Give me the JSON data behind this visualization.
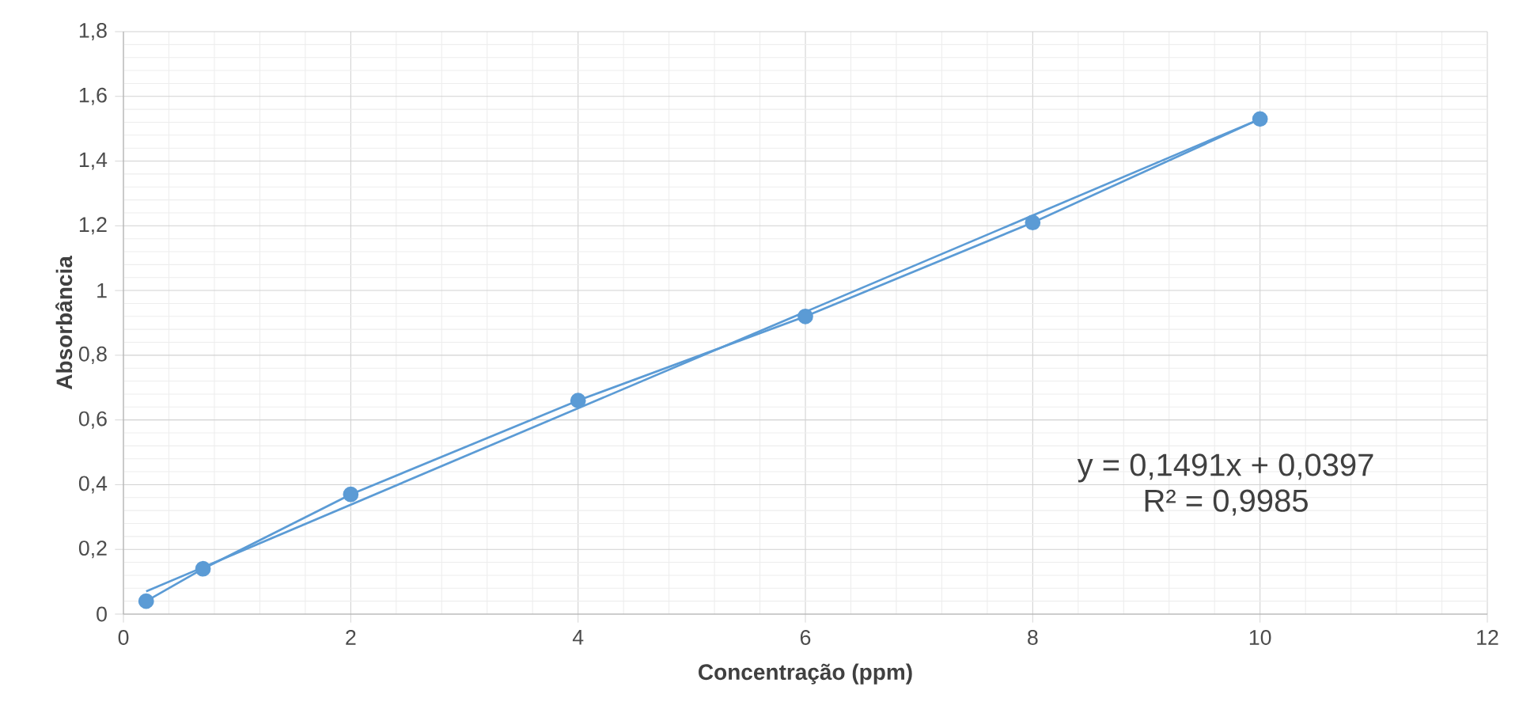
{
  "chart_data": {
    "type": "line",
    "xlabel": "Concentração (ppm)",
    "ylabel": "Absorbância",
    "series": [
      {
        "type": "line",
        "color": "#5b9bd5",
        "marker": "circle",
        "x": [
          0.2,
          0.7,
          2,
          4,
          6,
          8,
          10
        ],
        "values": [
          0.04,
          0.14,
          0.37,
          0.66,
          0.92,
          1.21,
          1.53
        ]
      },
      {
        "type": "line",
        "color": "#5b9bd5",
        "marker": "none",
        "x": [
          0.2,
          10
        ],
        "values": [
          0.07,
          1.53
        ]
      }
    ],
    "annotations": [
      "y = 0,1491x + 0,0397",
      "R² = 0,9985"
    ],
    "xlim": [
      0,
      12
    ],
    "xticks": [
      0,
      2,
      4,
      6,
      8,
      10,
      12
    ],
    "ylim": [
      0,
      1.8
    ],
    "yticks": [
      0,
      {
        "value": 0.2,
        "label": "0,2"
      },
      {
        "value": 0.4,
        "label": "0,4"
      },
      {
        "value": 0.6,
        "label": "0,6"
      },
      {
        "value": 0.8,
        "label": "0,8"
      },
      1,
      {
        "value": 1.2,
        "label": "1,2"
      },
      {
        "value": 1.4,
        "label": "1,4"
      },
      {
        "value": 1.6,
        "label": "1,6"
      },
      {
        "value": 1.8,
        "label": "1,8"
      }
    ],
    "grid": true
  }
}
